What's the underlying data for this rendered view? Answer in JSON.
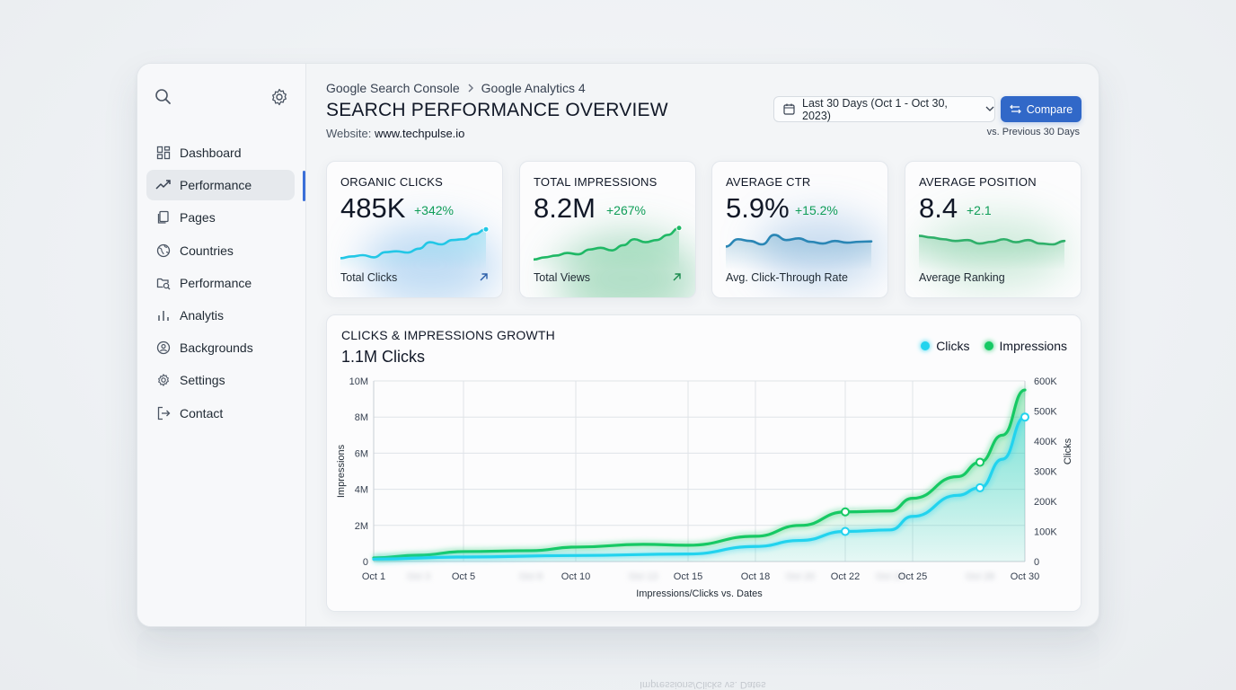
{
  "sidebar": {
    "items": [
      {
        "label": "Dashboard",
        "icon": "dashboard-icon"
      },
      {
        "label": "Performance",
        "icon": "trend-icon",
        "active": true
      },
      {
        "label": "Pages",
        "icon": "pages-icon"
      },
      {
        "label": "Countries",
        "icon": "globe-icon"
      },
      {
        "label": "Performance",
        "icon": "folder-search-icon"
      },
      {
        "label": "Analytis",
        "icon": "bar-chart-icon"
      },
      {
        "label": "Backgrounds",
        "icon": "badge-icon"
      },
      {
        "label": "Settings",
        "icon": "gear-icon"
      },
      {
        "label": "Contact",
        "icon": "logout-icon"
      }
    ]
  },
  "header": {
    "breadcrumb": [
      "Google Search Console",
      "Google Analytics 4"
    ],
    "title": "SEARCH PERFORMANCE OVERVIEW",
    "website_label": "Website:",
    "website": "www.techpulse.io",
    "date_range": "Last 30 Days (Oct 1 - Oct 30, 2023)",
    "compare_label": "Compare",
    "comparison_note": "vs. Previous 30 Days"
  },
  "kpis": [
    {
      "label": "ORGANIC CLICKS",
      "value": "485K",
      "change": "+342%",
      "footer": "Total Clicks",
      "color": "#22c7e6",
      "spark": [
        0.18,
        0.22,
        0.25,
        0.2,
        0.32,
        0.34,
        0.31,
        0.4,
        0.55,
        0.5,
        0.6,
        0.62,
        0.74,
        0.85
      ],
      "arrow": true
    },
    {
      "label": "TOTAL IMPRESSIONS",
      "value": "8.2M",
      "change": "+267%",
      "footer": "Total Views",
      "color": "#1fb865",
      "spark": [
        0.15,
        0.2,
        0.24,
        0.3,
        0.27,
        0.38,
        0.42,
        0.36,
        0.48,
        0.62,
        0.55,
        0.6,
        0.72,
        0.88
      ],
      "arrow": true
    },
    {
      "label": "AVERAGE CTR",
      "value": "5.9%",
      "change": "+15.2%",
      "footer": "Avg. Click-Through Rate",
      "color": "#2a86b5",
      "spark": [
        0.45,
        0.62,
        0.58,
        0.5,
        0.72,
        0.6,
        0.64,
        0.56,
        0.52,
        0.58,
        0.54,
        0.56,
        0.57
      ],
      "arrow": false
    },
    {
      "label": "AVERAGE POSITION",
      "value": "8.4",
      "change": "+2.1",
      "footer": "Average Ranking",
      "color": "#2fb06a",
      "spark": [
        0.7,
        0.66,
        0.62,
        0.58,
        0.6,
        0.52,
        0.56,
        0.62,
        0.55,
        0.6,
        0.52,
        0.5,
        0.58
      ],
      "arrow": false
    }
  ],
  "chart": {
    "title": "CLICKS & IMPRESSIONS GROWTH",
    "subtitle_value": "1.1M",
    "subtitle_unit": "Clicks",
    "legend": [
      {
        "name": "Clicks",
        "color": "#22d3ee"
      },
      {
        "name": "Impressions",
        "color": "#16c964"
      }
    ]
  },
  "chart_data": {
    "type": "line",
    "xlabel": "Impressions/Clicks vs. Dates",
    "ylabel": "Impressions",
    "y2label": "Clicks",
    "ylim": [
      0,
      10000000
    ],
    "y2lim": [
      0,
      600000
    ],
    "y_ticks": [
      "0",
      "2M",
      "4M",
      "6M",
      "8M",
      "10M"
    ],
    "y2_ticks": [
      "0",
      "100K",
      "200K",
      "300K",
      "400K",
      "500K",
      "600K"
    ],
    "x_ticks": [
      {
        "day": 1,
        "label": "Oct 1"
      },
      {
        "day": 3,
        "label": "Oct 3",
        "faded": true
      },
      {
        "day": 5,
        "label": "Oct 5"
      },
      {
        "day": 8,
        "label": "Oct 8",
        "faded": true
      },
      {
        "day": 10,
        "label": "Oct 10"
      },
      {
        "day": 13,
        "label": "Oct 13",
        "faded": true
      },
      {
        "day": 15,
        "label": "Oct 15"
      },
      {
        "day": 18,
        "label": "Oct 18"
      },
      {
        "day": 20,
        "label": "Oct 20",
        "faded": true
      },
      {
        "day": 22,
        "label": "Oct 22"
      },
      {
        "day": 24,
        "label": "Oct 24",
        "faded": true
      },
      {
        "day": 25,
        "label": "Oct 25"
      },
      {
        "day": 28,
        "label": "Oct 28",
        "faded": true
      },
      {
        "day": 30,
        "label": "Oct 30"
      }
    ],
    "series": [
      {
        "name": "Impressions",
        "axis": "left",
        "x": [
          1,
          3,
          5,
          8,
          10,
          13,
          15,
          18,
          20,
          22,
          24,
          25,
          27,
          28,
          29,
          30
        ],
        "values": [
          200000,
          350000,
          550000,
          600000,
          800000,
          950000,
          900000,
          1400000,
          2000000,
          2750000,
          2800000,
          3500000,
          4700000,
          5500000,
          7000000,
          9500000
        ],
        "markers": [
          22,
          28
        ]
      },
      {
        "name": "Clicks",
        "axis": "right",
        "x": [
          1,
          5,
          10,
          15,
          18,
          20,
          22,
          24,
          25,
          27,
          28,
          29,
          30
        ],
        "values": [
          8000,
          15000,
          20000,
          25000,
          50000,
          70000,
          100000,
          105000,
          150000,
          220000,
          245000,
          340000,
          480000
        ],
        "markers": [
          22,
          28,
          30
        ]
      }
    ]
  }
}
